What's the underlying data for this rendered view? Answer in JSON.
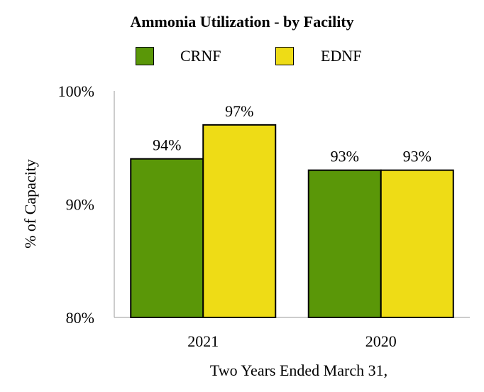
{
  "chart_data": {
    "type": "bar",
    "title": "Ammonia Utilization - by Facility",
    "xlabel": "Two Years Ended March 31,",
    "ylabel": "% of Capacity",
    "categories": [
      "2021",
      "2020"
    ],
    "series": [
      {
        "name": "CRNF",
        "color": "#5a9708",
        "values": [
          94,
          93
        ],
        "labels": [
          "94%",
          "93%"
        ]
      },
      {
        "name": "EDNF",
        "color": "#eedc16",
        "values": [
          97,
          93
        ],
        "labels": [
          "97%",
          "93%"
        ]
      }
    ],
    "ylim": [
      80,
      100
    ],
    "yticks": [
      80,
      90,
      100
    ],
    "ytick_labels": [
      "80%",
      "90%",
      "100%"
    ],
    "grid": false,
    "legend_position": "top"
  }
}
